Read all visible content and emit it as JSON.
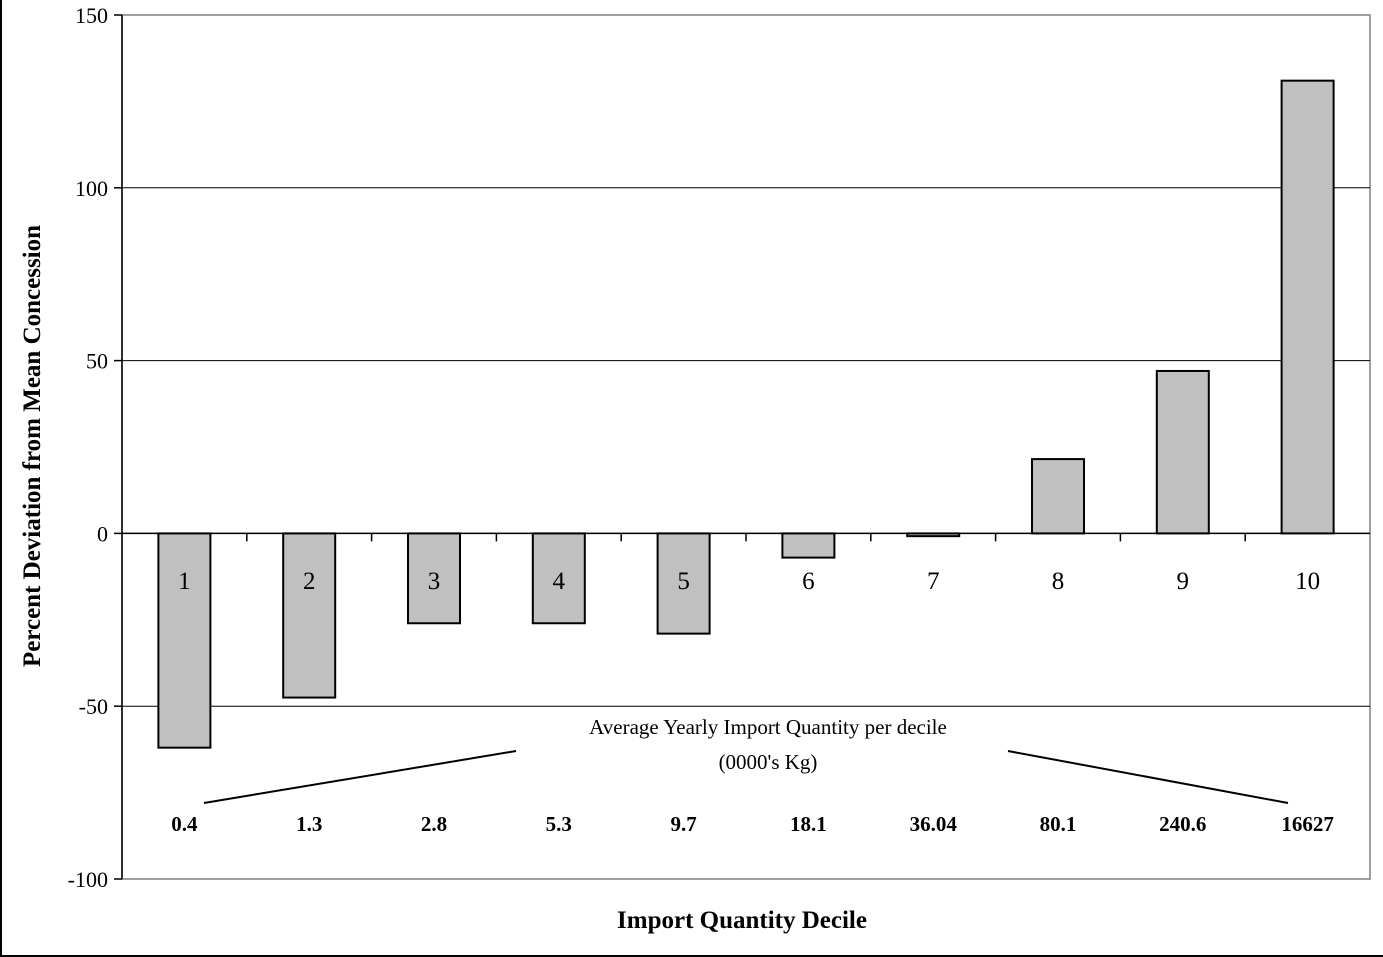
{
  "chart_data": {
    "type": "bar",
    "categories": [
      "1",
      "2",
      "3",
      "4",
      "5",
      "6",
      "7",
      "8",
      "9",
      "10"
    ],
    "values": [
      -62,
      -47.5,
      -26,
      -26,
      -29,
      -7,
      -0.8,
      21.5,
      47,
      131
    ],
    "title": "",
    "xlabel": "Import Quantity Decile",
    "ylabel": "Percent Deviation from Mean Concession",
    "ylim": [
      -100,
      150
    ],
    "yticks": [
      150,
      100,
      50,
      0,
      -50,
      -100
    ],
    "grid": true,
    "bar_color": "#c0c0c0",
    "annotation": {
      "line1": "Average Yearly Import Quantity per decile",
      "line2": "(0000's Kg)"
    },
    "quantities": [
      "0.4",
      "1.3",
      "2.8",
      "5.3",
      "9.7",
      "18.1",
      "36.04",
      "80.1",
      "240.6",
      "16627"
    ]
  }
}
